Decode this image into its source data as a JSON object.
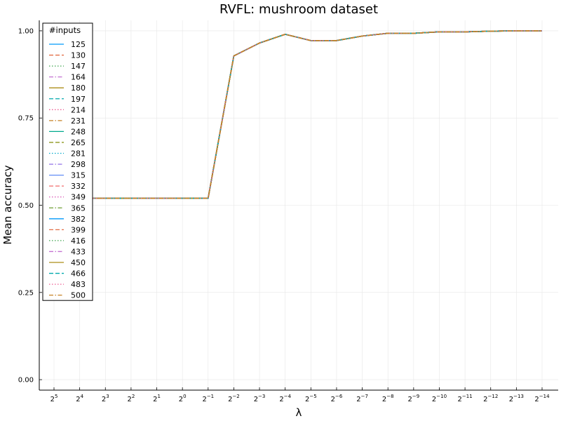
{
  "chart_data": {
    "type": "line",
    "title": "RVFL: mushroom dataset",
    "xlabel": "λ",
    "ylabel": "Mean accuracy",
    "x_tick_labels": [
      {
        "base": "2",
        "exp": "5"
      },
      {
        "base": "2",
        "exp": "4"
      },
      {
        "base": "2",
        "exp": "3"
      },
      {
        "base": "2",
        "exp": "2"
      },
      {
        "base": "2",
        "exp": "1"
      },
      {
        "base": "2",
        "exp": "0"
      },
      {
        "base": "2",
        "exp": "−1"
      },
      {
        "base": "2",
        "exp": "−2"
      },
      {
        "base": "2",
        "exp": "−3"
      },
      {
        "base": "2",
        "exp": "−4"
      },
      {
        "base": "2",
        "exp": "−5"
      },
      {
        "base": "2",
        "exp": "−6"
      },
      {
        "base": "2",
        "exp": "−7"
      },
      {
        "base": "2",
        "exp": "−8"
      },
      {
        "base": "2",
        "exp": "−9"
      },
      {
        "base": "2",
        "exp": "−10"
      },
      {
        "base": "2",
        "exp": "−11"
      },
      {
        "base": "2",
        "exp": "−12"
      },
      {
        "base": "2",
        "exp": "−13"
      },
      {
        "base": "2",
        "exp": "−14"
      }
    ],
    "x_exponents": [
      5,
      4,
      3,
      2,
      1,
      0,
      -1,
      -2,
      -3,
      -4,
      -5,
      -6,
      -7,
      -8,
      -9,
      -10,
      -11,
      -12,
      -13,
      -14
    ],
    "ylim": [
      -0.03,
      1.03
    ],
    "yticks": [
      0.0,
      0.25,
      0.5,
      0.75,
      1.0
    ],
    "ytick_labels": [
      "0.00",
      "0.25",
      "0.50",
      "0.75",
      "1.00"
    ],
    "grid": true,
    "legend_title": "#inputs",
    "legend_position": "top-left",
    "mean_values": [
      0.52,
      0.52,
      0.52,
      0.52,
      0.52,
      0.52,
      0.52,
      0.928,
      0.965,
      0.99,
      0.972,
      0.972,
      0.985,
      0.993,
      0.993,
      0.997,
      0.997,
      0.999,
      1.0,
      1.0
    ],
    "series": [
      {
        "name": "125",
        "color": "#009AFA",
        "dash": "solid"
      },
      {
        "name": "130",
        "color": "#E36F47",
        "dash": "dashed"
      },
      {
        "name": "147",
        "color": "#3EA44E",
        "dash": "dotted"
      },
      {
        "name": "164",
        "color": "#C371D2",
        "dash": "dashdot"
      },
      {
        "name": "180",
        "color": "#AC8E18",
        "dash": "solid"
      },
      {
        "name": "197",
        "color": "#00A9AD",
        "dash": "dashed"
      },
      {
        "name": "214",
        "color": "#ED5E93",
        "dash": "dotted"
      },
      {
        "name": "231",
        "color": "#C68225",
        "dash": "dashdot"
      },
      {
        "name": "248",
        "color": "#00A98D",
        "dash": "solid"
      },
      {
        "name": "265",
        "color": "#8E971E",
        "dash": "dashed"
      },
      {
        "name": "281",
        "color": "#00A8CB",
        "dash": "dotted"
      },
      {
        "name": "298",
        "color": "#9B7FE9",
        "dash": "dashdot"
      },
      {
        "name": "315",
        "color": "#618DF6",
        "dash": "solid"
      },
      {
        "name": "332",
        "color": "#F16C6C",
        "dash": "dashed"
      },
      {
        "name": "349",
        "color": "#DC63BB",
        "dash": "dotted"
      },
      {
        "name": "365",
        "color": "#6D9E33",
        "dash": "dashdot"
      },
      {
        "name": "382",
        "color": "#009AFA",
        "dash": "solid"
      },
      {
        "name": "399",
        "color": "#E36F47",
        "dash": "dashed"
      },
      {
        "name": "416",
        "color": "#3EA44E",
        "dash": "dotted"
      },
      {
        "name": "433",
        "color": "#C371D2",
        "dash": "dashdot"
      },
      {
        "name": "450",
        "color": "#AC8E18",
        "dash": "solid"
      },
      {
        "name": "466",
        "color": "#00A9AD",
        "dash": "dashed"
      },
      {
        "name": "483",
        "color": "#ED5E93",
        "dash": "dotted"
      },
      {
        "name": "500",
        "color": "#C68225",
        "dash": "dashdot"
      }
    ]
  }
}
